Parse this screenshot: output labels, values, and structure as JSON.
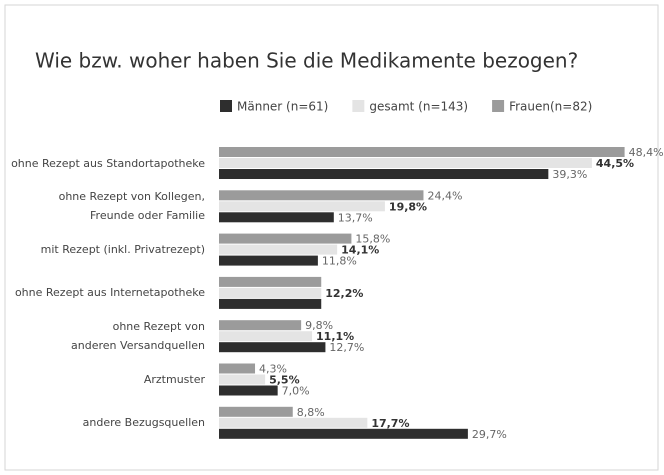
{
  "chart_data": {
    "type": "bar",
    "orientation": "horizontal",
    "title": "Wie bzw. woher haben Sie die Medikamente bezogen?",
    "categories": [
      "ohne Rezept aus Standortapotheke",
      "ohne Rezept von Kollegen,\nFreunde oder Familie",
      "mit Rezept (inkl. Privatrezept)",
      "ohne Rezept aus Internetapotheke",
      "ohne Rezept von\nanderen Versandquellen",
      "Arztmuster",
      "andere Bezugsquellen"
    ],
    "legend_order": [
      2,
      1,
      0
    ],
    "series": [
      {
        "name": "Frauen(n=82)",
        "color": "#9b9b9b",
        "values": [
          48.4,
          24.4,
          15.8,
          12.2,
          9.8,
          4.3,
          8.8
        ],
        "value_labels": [
          "48,4%",
          "24,4%",
          "15,8%",
          null,
          "9,8%",
          "4,3%",
          "8,8%"
        ]
      },
      {
        "name": "gesamt (n=143)",
        "color": "#e4e4e4",
        "bold_labels": true,
        "values": [
          44.5,
          19.8,
          14.1,
          12.2,
          11.1,
          5.5,
          17.7
        ],
        "value_labels": [
          "44,5%",
          "19,8%",
          "14,1%",
          "12,2%",
          "11,1%",
          "5,5%",
          "17,7%"
        ]
      },
      {
        "name": "Männer (n=61)",
        "color": "#2e2e2e",
        "values": [
          39.3,
          13.7,
          11.8,
          12.2,
          12.7,
          7.0,
          29.7
        ],
        "value_labels": [
          "39,3%",
          "13,7%",
          "11,8%",
          null,
          "12,7%",
          "7,0%",
          "29,7%"
        ]
      }
    ],
    "xlim": [
      0,
      50
    ]
  }
}
